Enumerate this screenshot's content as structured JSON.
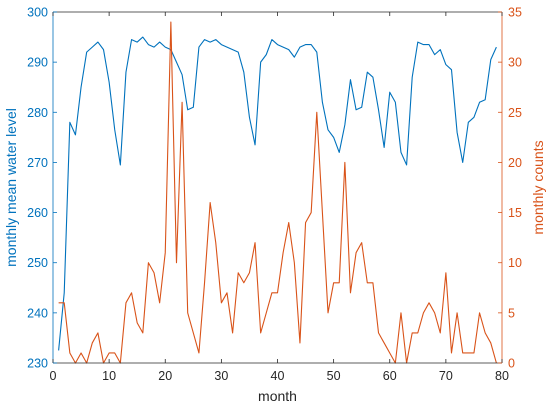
{
  "chart_data": {
    "type": "line",
    "xlabel": "month",
    "x_ticks": [
      "0",
      "10",
      "20",
      "30",
      "40",
      "50",
      "60",
      "70",
      "80"
    ],
    "xlim": [
      0,
      80
    ],
    "left_axis": {
      "label": "monthly mean water level",
      "color": "#0072BD",
      "ylim": [
        230,
        300
      ],
      "ticks": [
        "230",
        "240",
        "250",
        "260",
        "270",
        "280",
        "290",
        "300"
      ]
    },
    "right_axis": {
      "label": "monthly counts",
      "color": "#D95319",
      "ylim": [
        0,
        35
      ],
      "ticks": [
        "0",
        "5",
        "10",
        "15",
        "20",
        "25",
        "30",
        "35"
      ]
    },
    "grid": false,
    "series": [
      {
        "axis": "left",
        "color": "#0072BD",
        "x": [
          1,
          2,
          3,
          4,
          5,
          6,
          7,
          8,
          9,
          10,
          11,
          12,
          13,
          14,
          15,
          16,
          17,
          18,
          19,
          20,
          21,
          22,
          23,
          24,
          25,
          26,
          27,
          28,
          29,
          30,
          31,
          32,
          33,
          34,
          35,
          36,
          37,
          38,
          39,
          40,
          41,
          42,
          43,
          44,
          45,
          46,
          47,
          48,
          49,
          50,
          51,
          52,
          53,
          54,
          55,
          56,
          57,
          58,
          59,
          60,
          61,
          62,
          63,
          64,
          65,
          66,
          67,
          68,
          69,
          70,
          71,
          72,
          73,
          74,
          75,
          76,
          77,
          78,
          79
        ],
        "values": [
          232.5,
          244,
          278,
          275.5,
          285,
          292,
          293,
          294,
          292.5,
          286,
          276.5,
          269.5,
          288,
          294.5,
          294,
          295,
          293.5,
          293,
          294,
          293,
          292.5,
          290,
          287.5,
          280.5,
          281,
          293,
          294.5,
          294,
          294.5,
          293.5,
          293,
          292.5,
          292,
          288,
          279,
          273.5,
          290,
          291.5,
          294.5,
          293.5,
          293,
          292.5,
          291,
          293,
          293.5,
          293.5,
          292,
          282,
          276.5,
          275,
          272,
          277.5,
          286.5,
          280.5,
          281,
          288,
          287,
          280.5,
          273,
          284,
          282,
          272,
          269.5,
          287,
          294,
          293.5,
          293.5,
          291.5,
          292.5,
          289.5,
          288.5,
          276,
          270,
          278,
          279,
          282,
          282.5,
          290.5,
          293
        ]
      },
      {
        "axis": "right",
        "color": "#D95319",
        "x": [
          1,
          2,
          3,
          4,
          5,
          6,
          7,
          8,
          9,
          10,
          11,
          12,
          13,
          14,
          15,
          16,
          17,
          18,
          19,
          20,
          21,
          22,
          23,
          24,
          25,
          26,
          27,
          28,
          29,
          30,
          31,
          32,
          33,
          34,
          35,
          36,
          37,
          38,
          39,
          40,
          41,
          42,
          43,
          44,
          45,
          46,
          47,
          48,
          49,
          50,
          51,
          52,
          53,
          54,
          55,
          56,
          57,
          58,
          59,
          60,
          61,
          62,
          63,
          64,
          65,
          66,
          67,
          68,
          69,
          70,
          71,
          72,
          73,
          74,
          75,
          76,
          77,
          78,
          79
        ],
        "values": [
          6,
          6,
          1,
          0,
          1,
          0,
          2,
          3,
          0,
          1,
          1,
          0,
          6,
          7,
          4,
          3,
          10,
          9,
          6,
          11,
          34,
          10,
          26,
          5,
          3,
          1,
          8,
          16,
          12,
          6,
          7,
          3,
          9,
          8,
          9,
          12,
          3,
          5,
          7,
          7,
          11,
          14,
          10,
          2,
          14,
          15,
          25,
          15,
          5,
          8,
          8,
          20,
          7,
          11,
          12,
          8,
          8,
          3,
          2,
          1,
          0,
          5,
          0,
          3,
          3,
          5,
          6,
          5,
          3,
          9,
          1,
          5,
          1,
          1,
          1,
          5,
          3,
          2,
          0
        ]
      }
    ]
  }
}
